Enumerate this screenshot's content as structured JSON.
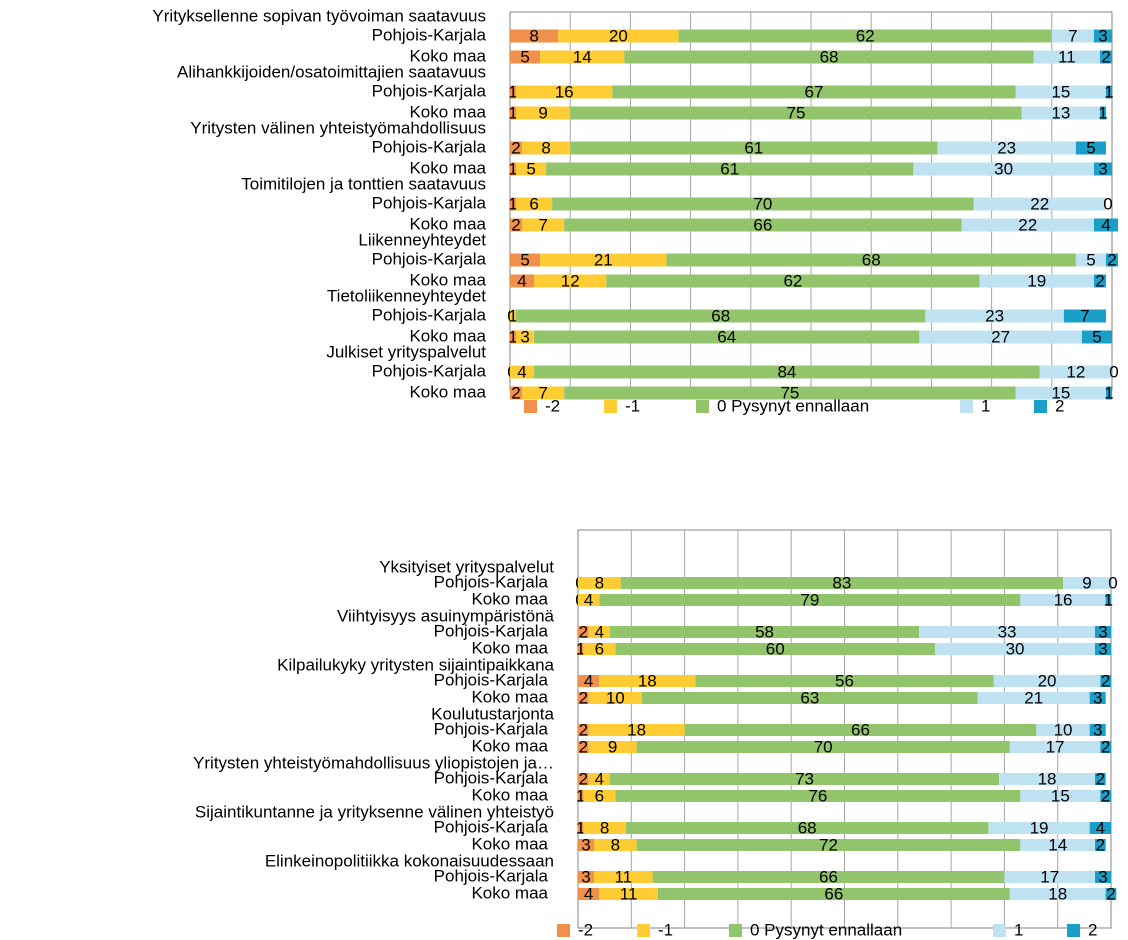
{
  "colors": {
    "m2": "#F0904A",
    "m1": "#FFCC33",
    "z0": "#92C46C",
    "p1": "#BFE2F2",
    "p2": "#1AA0C8",
    "grid": "#A6A6A6",
    "axis": "#868686"
  },
  "chart_data": [
    {
      "type": "bar",
      "stacked": true,
      "orientation": "horizontal",
      "xlim": [
        0,
        100
      ],
      "grid": true,
      "legend_position": "bottom",
      "series": [
        {
          "name": "-2",
          "color_key": "m2"
        },
        {
          "name": "-1",
          "color_key": "m1"
        },
        {
          "name": "0  Pysynyt ennallaan",
          "color_key": "z0"
        },
        {
          "name": "1",
          "color_key": "p1"
        },
        {
          "name": "2",
          "color_key": "p2"
        }
      ],
      "groups": [
        {
          "title": "Yrityksellenne sopivan työvoiman saatavuus",
          "rows": [
            {
              "label": "Pohjois-Karjala",
              "values": [
                8,
                20,
                62,
                7,
                3
              ]
            },
            {
              "label": "Koko maa",
              "values": [
                5,
                14,
                68,
                11,
                2
              ]
            }
          ]
        },
        {
          "title": "Alihankkijoiden/osatoimittajien saatavuus",
          "rows": [
            {
              "label": "Pohjois-Karjala",
              "values": [
                1,
                16,
                67,
                15,
                1
              ]
            },
            {
              "label": "Koko maa",
              "values": [
                1,
                9,
                75,
                13,
                1
              ]
            }
          ]
        },
        {
          "title": "Yritysten välinen yhteistyömahdollisuus",
          "rows": [
            {
              "label": "Pohjois-Karjala",
              "values": [
                2,
                8,
                61,
                23,
                5
              ]
            },
            {
              "label": "Koko maa",
              "values": [
                1,
                5,
                61,
                30,
                3
              ]
            }
          ]
        },
        {
          "title": "Toimitilojen ja tonttien saatavuus",
          "rows": [
            {
              "label": "Pohjois-Karjala",
              "values": [
                1,
                6,
                70,
                22,
                0
              ]
            },
            {
              "label": "Koko maa",
              "values": [
                2,
                7,
                66,
                22,
                4
              ]
            }
          ]
        },
        {
          "title": "Liikenneyhteydet",
          "rows": [
            {
              "label": "Pohjois-Karjala",
              "values": [
                5,
                21,
                68,
                5,
                2
              ]
            },
            {
              "label": "Koko maa",
              "values": [
                4,
                12,
                62,
                19,
                2
              ]
            }
          ]
        },
        {
          "title": "Tietoliikenneyhteydet",
          "rows": [
            {
              "label": "Pohjois-Karjala",
              "values": [
                0,
                1,
                68,
                23,
                7
              ]
            },
            {
              "label": "Koko maa",
              "values": [
                1,
                3,
                64,
                27,
                5
              ]
            }
          ]
        },
        {
          "title": "Julkiset yrityspalvelut",
          "rows": [
            {
              "label": "Pohjois-Karjala",
              "values": [
                0,
                4,
                84,
                12,
                0
              ]
            },
            {
              "label": "Koko maa",
              "values": [
                2,
                7,
                75,
                15,
                1
              ]
            }
          ]
        }
      ]
    },
    {
      "type": "bar",
      "stacked": true,
      "orientation": "horizontal",
      "xlim": [
        0,
        100
      ],
      "grid": true,
      "legend_position": "bottom",
      "series": [
        {
          "name": "-2",
          "color_key": "m2"
        },
        {
          "name": "-1",
          "color_key": "m1"
        },
        {
          "name": "0  Pysynyt ennallaan",
          "color_key": "z0"
        },
        {
          "name": "1",
          "color_key": "p1"
        },
        {
          "name": "2",
          "color_key": "p2"
        }
      ],
      "groups": [
        {
          "title": "Yksityiset yrityspalvelut",
          "rows": [
            {
              "label": "Pohjois-Karjala",
              "values": [
                0,
                8,
                83,
                9,
                0
              ]
            },
            {
              "label": "Koko maa",
              "values": [
                0,
                4,
                79,
                16,
                1
              ]
            }
          ]
        },
        {
          "title": "Viihtyisyys asuinympäristönä",
          "rows": [
            {
              "label": "Pohjois-Karjala",
              "values": [
                2,
                4,
                58,
                33,
                3
              ]
            },
            {
              "label": "Koko maa",
              "values": [
                1,
                6,
                60,
                30,
                3
              ]
            }
          ]
        },
        {
          "title": "Kilpailukyky yritysten sijaintipaikkana",
          "rows": [
            {
              "label": "Pohjois-Karjala",
              "values": [
                4,
                18,
                56,
                20,
                2
              ]
            },
            {
              "label": "Koko maa",
              "values": [
                2,
                10,
                63,
                21,
                3
              ]
            }
          ]
        },
        {
          "title": "Koulutustarjonta",
          "rows": [
            {
              "label": "Pohjois-Karjala",
              "values": [
                2,
                18,
                66,
                10,
                3
              ]
            },
            {
              "label": "Koko maa",
              "values": [
                2,
                9,
                70,
                17,
                2
              ]
            }
          ]
        },
        {
          "title": "Yritysten yhteistyömahdollisuus yliopistojen ja…",
          "rows": [
            {
              "label": "Pohjois-Karjala",
              "values": [
                2,
                4,
                73,
                18,
                2
              ]
            },
            {
              "label": "Koko maa",
              "values": [
                1,
                6,
                76,
                15,
                2
              ]
            }
          ]
        },
        {
          "title": "Sijaintikuntanne ja yrityksenne välinen yhteistyö",
          "rows": [
            {
              "label": "Pohjois-Karjala",
              "values": [
                1,
                8,
                68,
                19,
                4
              ]
            },
            {
              "label": "Koko maa",
              "values": [
                3,
                8,
                72,
                14,
                2
              ]
            }
          ]
        },
        {
          "title": "Elinkeinopolitiikka kokonaisuudessaan",
          "rows": [
            {
              "label": "Pohjois-Karjala",
              "values": [
                3,
                11,
                66,
                17,
                3
              ]
            },
            {
              "label": "Koko maa",
              "values": [
                4,
                11,
                66,
                18,
                2
              ]
            }
          ]
        }
      ]
    }
  ]
}
